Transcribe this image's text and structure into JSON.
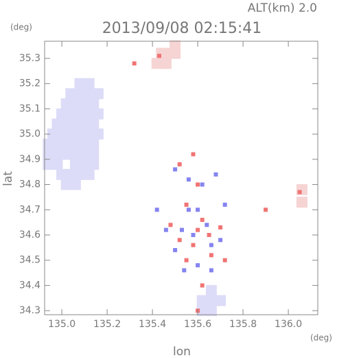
{
  "chart_data": {
    "type": "scatter",
    "title": "2013/09/08 02:15:41",
    "subtitle": "ALT(km) 2.0",
    "x_label": "lon",
    "y_label": "lat",
    "x_unit": "(deg)",
    "y_unit": "(deg)",
    "xlim": [
      134.924,
      136.13
    ],
    "ylim": [
      34.284,
      35.368
    ],
    "xticks": [
      {
        "value": 135,
        "label": "135.0"
      },
      135.2,
      135.4,
      135.6,
      135.8,
      {
        "value": 136,
        "label": "136.0"
      }
    ],
    "yticks": [
      34.3,
      34.4,
      34.5,
      34.6,
      34.7,
      34.8,
      34.9,
      {
        "value": 35,
        "label": "35.0"
      },
      35.1,
      35.2,
      35.3
    ],
    "series": [
      {
        "color": "#dcdcf8",
        "marker_size": 16,
        "x": [
          135.08,
          135.12,
          135.04,
          135.08,
          135.12,
          135.16,
          135.02,
          135.06,
          135.1,
          135.14,
          135.0,
          135.04,
          135.08,
          135.12,
          135.16,
          134.98,
          135.02,
          135.06,
          135.1,
          135.14,
          134.96,
          135.0,
          135.04,
          135.08,
          135.12,
          135.16,
          134.94,
          134.98,
          135.02,
          135.06,
          135.1,
          135.14,
          134.94,
          134.98,
          135.02,
          135.06,
          135.1,
          135.14,
          134.94,
          134.98,
          135.06,
          135.1,
          135.14,
          135.0,
          135.04,
          135.08,
          135.12,
          135.02,
          135.06,
          135.62,
          135.66,
          135.66,
          135.62,
          135.66,
          135.7
        ],
        "y": [
          35.2,
          35.2,
          35.16,
          35.16,
          35.16,
          35.16,
          35.12,
          35.12,
          35.12,
          35.12,
          35.08,
          35.08,
          35.08,
          35.08,
          35.08,
          35.04,
          35.04,
          35.04,
          35.04,
          35.04,
          35.0,
          35.0,
          35.0,
          35.0,
          35.0,
          35.0,
          34.96,
          34.96,
          34.96,
          34.96,
          34.96,
          34.96,
          34.92,
          34.92,
          34.92,
          34.92,
          34.92,
          34.92,
          34.88,
          34.88,
          34.88,
          34.88,
          34.88,
          34.84,
          34.84,
          34.84,
          34.84,
          34.8,
          34.8,
          34.34,
          34.34,
          34.38,
          34.3,
          34.3,
          34.34
        ]
      },
      {
        "color": "#f6d4d4",
        "marker_size": 16,
        "x": [
          135.42,
          135.46,
          135.46,
          135.5,
          135.5,
          135.44,
          136.06,
          136.06
        ],
        "y": [
          35.28,
          35.28,
          35.32,
          35.32,
          35.35,
          35.32,
          34.73,
          34.78
        ]
      },
      {
        "color": "#f07474",
        "marker_size": 6,
        "x": [
          135.58,
          135.52,
          135.6,
          135.55,
          135.62,
          135.6,
          135.65,
          135.48,
          135.52,
          135.58,
          135.66,
          135.72,
          135.55,
          135.62,
          135.6,
          135.43,
          135.32,
          135.9,
          136.05,
          135.7
        ],
        "y": [
          34.92,
          34.88,
          34.8,
          34.72,
          34.66,
          34.62,
          34.6,
          34.64,
          34.58,
          34.56,
          34.52,
          34.5,
          34.5,
          34.4,
          34.3,
          35.31,
          35.28,
          34.7,
          34.77,
          34.63
        ]
      },
      {
        "color": "#8484f0",
        "marker_size": 6,
        "x": [
          135.5,
          135.62,
          135.56,
          135.6,
          135.53,
          135.64,
          135.58,
          135.46,
          135.66,
          135.6,
          135.54,
          135.56,
          135.68,
          135.72,
          135.42,
          135.66,
          135.5,
          135.7
        ],
        "y": [
          34.86,
          34.8,
          34.7,
          34.7,
          34.62,
          34.64,
          34.6,
          34.62,
          34.56,
          34.48,
          34.46,
          34.82,
          34.84,
          34.72,
          34.7,
          34.46,
          34.54,
          34.58
        ]
      }
    ]
  }
}
